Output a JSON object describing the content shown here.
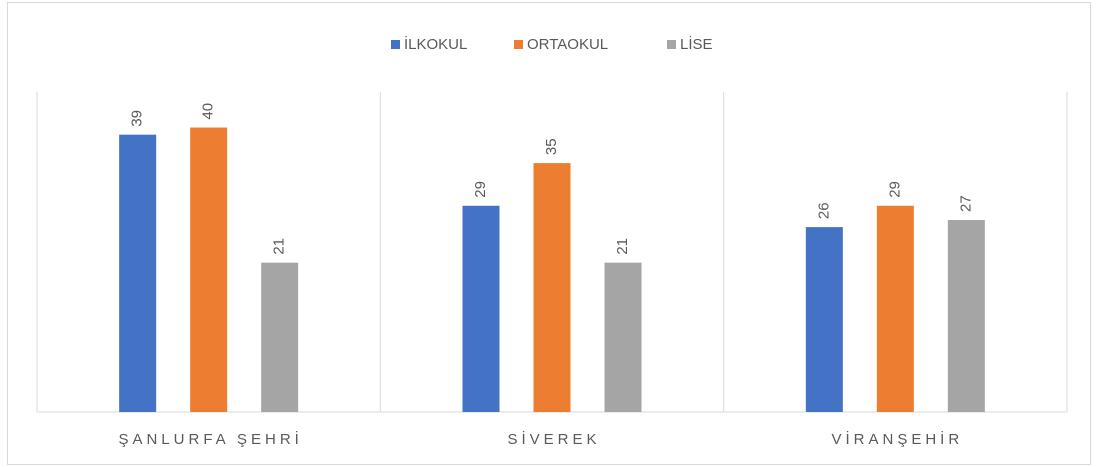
{
  "chart_data": {
    "type": "bar",
    "categories": [
      "ŞANLURFA ŞEHRİ",
      "SİVEREK",
      "VİRANŞEHİR"
    ],
    "series": [
      {
        "name": "İLKOKUL",
        "color": "#4472c4",
        "values": [
          39,
          29,
          26
        ]
      },
      {
        "name": "ORTAOKUL",
        "color": "#ed7d31",
        "values": [
          40,
          35,
          29
        ]
      },
      {
        "name": "LİSE",
        "color": "#a5a5a5",
        "values": [
          21,
          21,
          27
        ]
      }
    ],
    "ylim": [
      0,
      45
    ],
    "legend": "top"
  }
}
